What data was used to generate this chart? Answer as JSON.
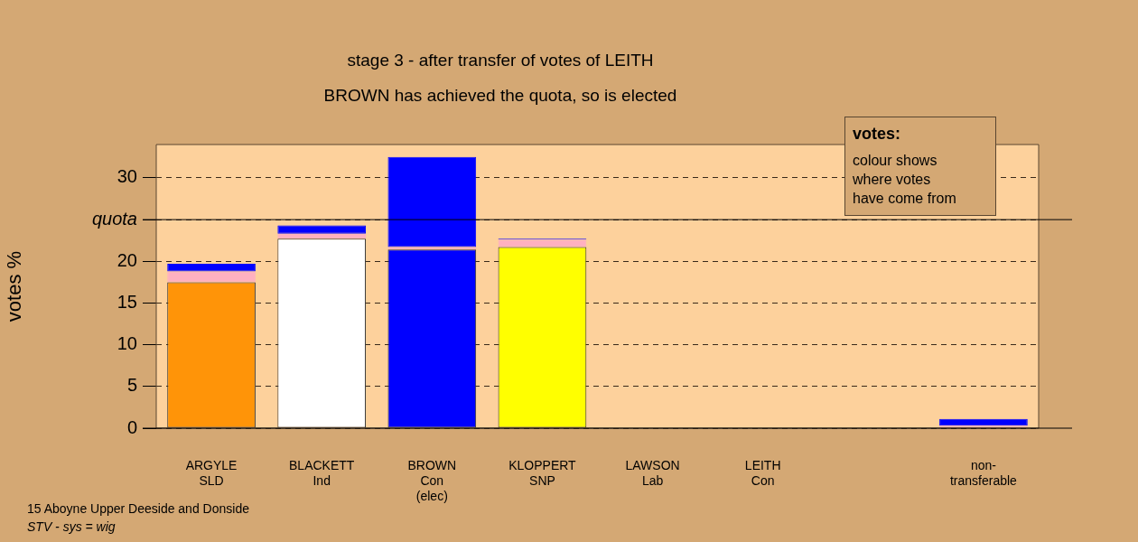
{
  "chart_data": {
    "type": "bar",
    "title": "stage 3 - after transfer of votes of LEITH",
    "subtitle": "BROWN has achieved the quota, so is elected",
    "ylabel": "votes %",
    "categories": [
      "ARGYLE\nSLD",
      "BLACKETT\nInd",
      "BROWN\nCon\n(elec)",
      "KLOPPERT\nSNP",
      "LAWSON\nLab",
      "LEITH\nCon",
      null,
      "non-\ntransferable"
    ],
    "stacked": true,
    "series": [
      {
        "colors": [
          "#ff9408",
          "#ffffff",
          "#0000ff",
          "#ffff00",
          "#ff0000",
          "#0000ff",
          "#ffffff",
          "#ffffff"
        ],
        "values": [
          17.5,
          22.7,
          21.4,
          21.7,
          0,
          0,
          null,
          0
        ]
      },
      {
        "color": "#ffb0c0",
        "values": [
          1.3,
          0.6,
          0.3,
          0.9,
          0,
          0,
          null,
          0.3
        ]
      },
      {
        "color": "#0000ff",
        "values": [
          0.9,
          1.0,
          10.8,
          0.1,
          0,
          0,
          null,
          0.8
        ]
      }
    ],
    "ylim": [
      0,
      34
    ],
    "yticks": [
      0,
      5,
      10,
      15,
      20,
      {
        "value": 25,
        "label": "quota"
      },
      30
    ],
    "grid": "y",
    "ref_lines": [
      {
        "axis": "y",
        "value": 25,
        "color": "#000000",
        "line_style": "solid"
      }
    ],
    "annotations": [
      "votes:",
      "colour shows\nwhere votes\nhave come from",
      "15 Aboyne Upper Deeside and Donside",
      "STV - sys = wig"
    ]
  }
}
